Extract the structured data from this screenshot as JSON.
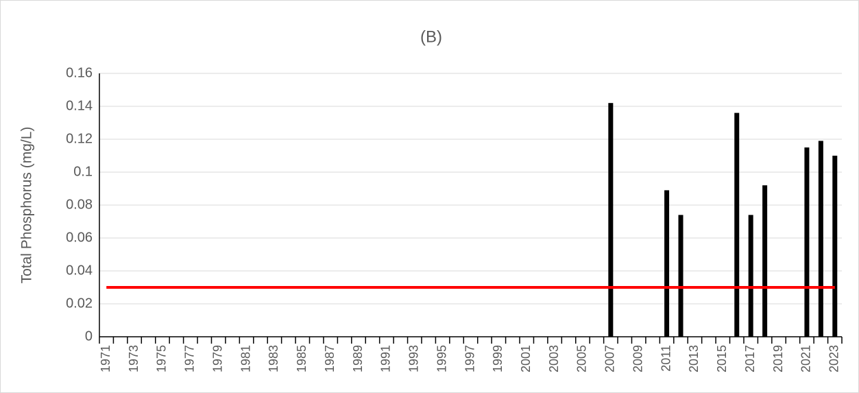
{
  "chart_data": {
    "type": "bar",
    "title": "(B)",
    "y_label": "Total Phosphorus (mg/L)",
    "categories": [
      "1971",
      null,
      "1973",
      null,
      "1975",
      null,
      "1977",
      null,
      "1979",
      null,
      "1981",
      null,
      "1983",
      null,
      "1985",
      null,
      "1987",
      null,
      "1989",
      null,
      "1991",
      null,
      "1993",
      null,
      "1995",
      null,
      "1997",
      null,
      "1999",
      null,
      "2001",
      null,
      "2003",
      null,
      "2005",
      null,
      "2007",
      null,
      "2009",
      null,
      "2011",
      null,
      "2013",
      null,
      "2015",
      null,
      "2017",
      null,
      "2019",
      null,
      "2021",
      null,
      "2023"
    ],
    "values": [
      null,
      null,
      null,
      null,
      null,
      null,
      null,
      null,
      null,
      null,
      null,
      null,
      null,
      null,
      null,
      null,
      null,
      null,
      null,
      null,
      null,
      null,
      null,
      null,
      null,
      null,
      null,
      null,
      null,
      null,
      null,
      null,
      null,
      null,
      null,
      null,
      0.142,
      null,
      null,
      null,
      0.089,
      0.074,
      null,
      null,
      null,
      0.136,
      0.074,
      0.092,
      null,
      null,
      0.115,
      0.119,
      0.11
    ],
    "color": "#000000",
    "reference_line": {
      "value": 0.03,
      "color": "#ff0000"
    },
    "ylim": [
      0,
      0.16
    ],
    "yticks": [
      0,
      0.02,
      0.04,
      0.06,
      0.08,
      0.1,
      0.12,
      0.14,
      0.16
    ],
    "grid": true
  }
}
